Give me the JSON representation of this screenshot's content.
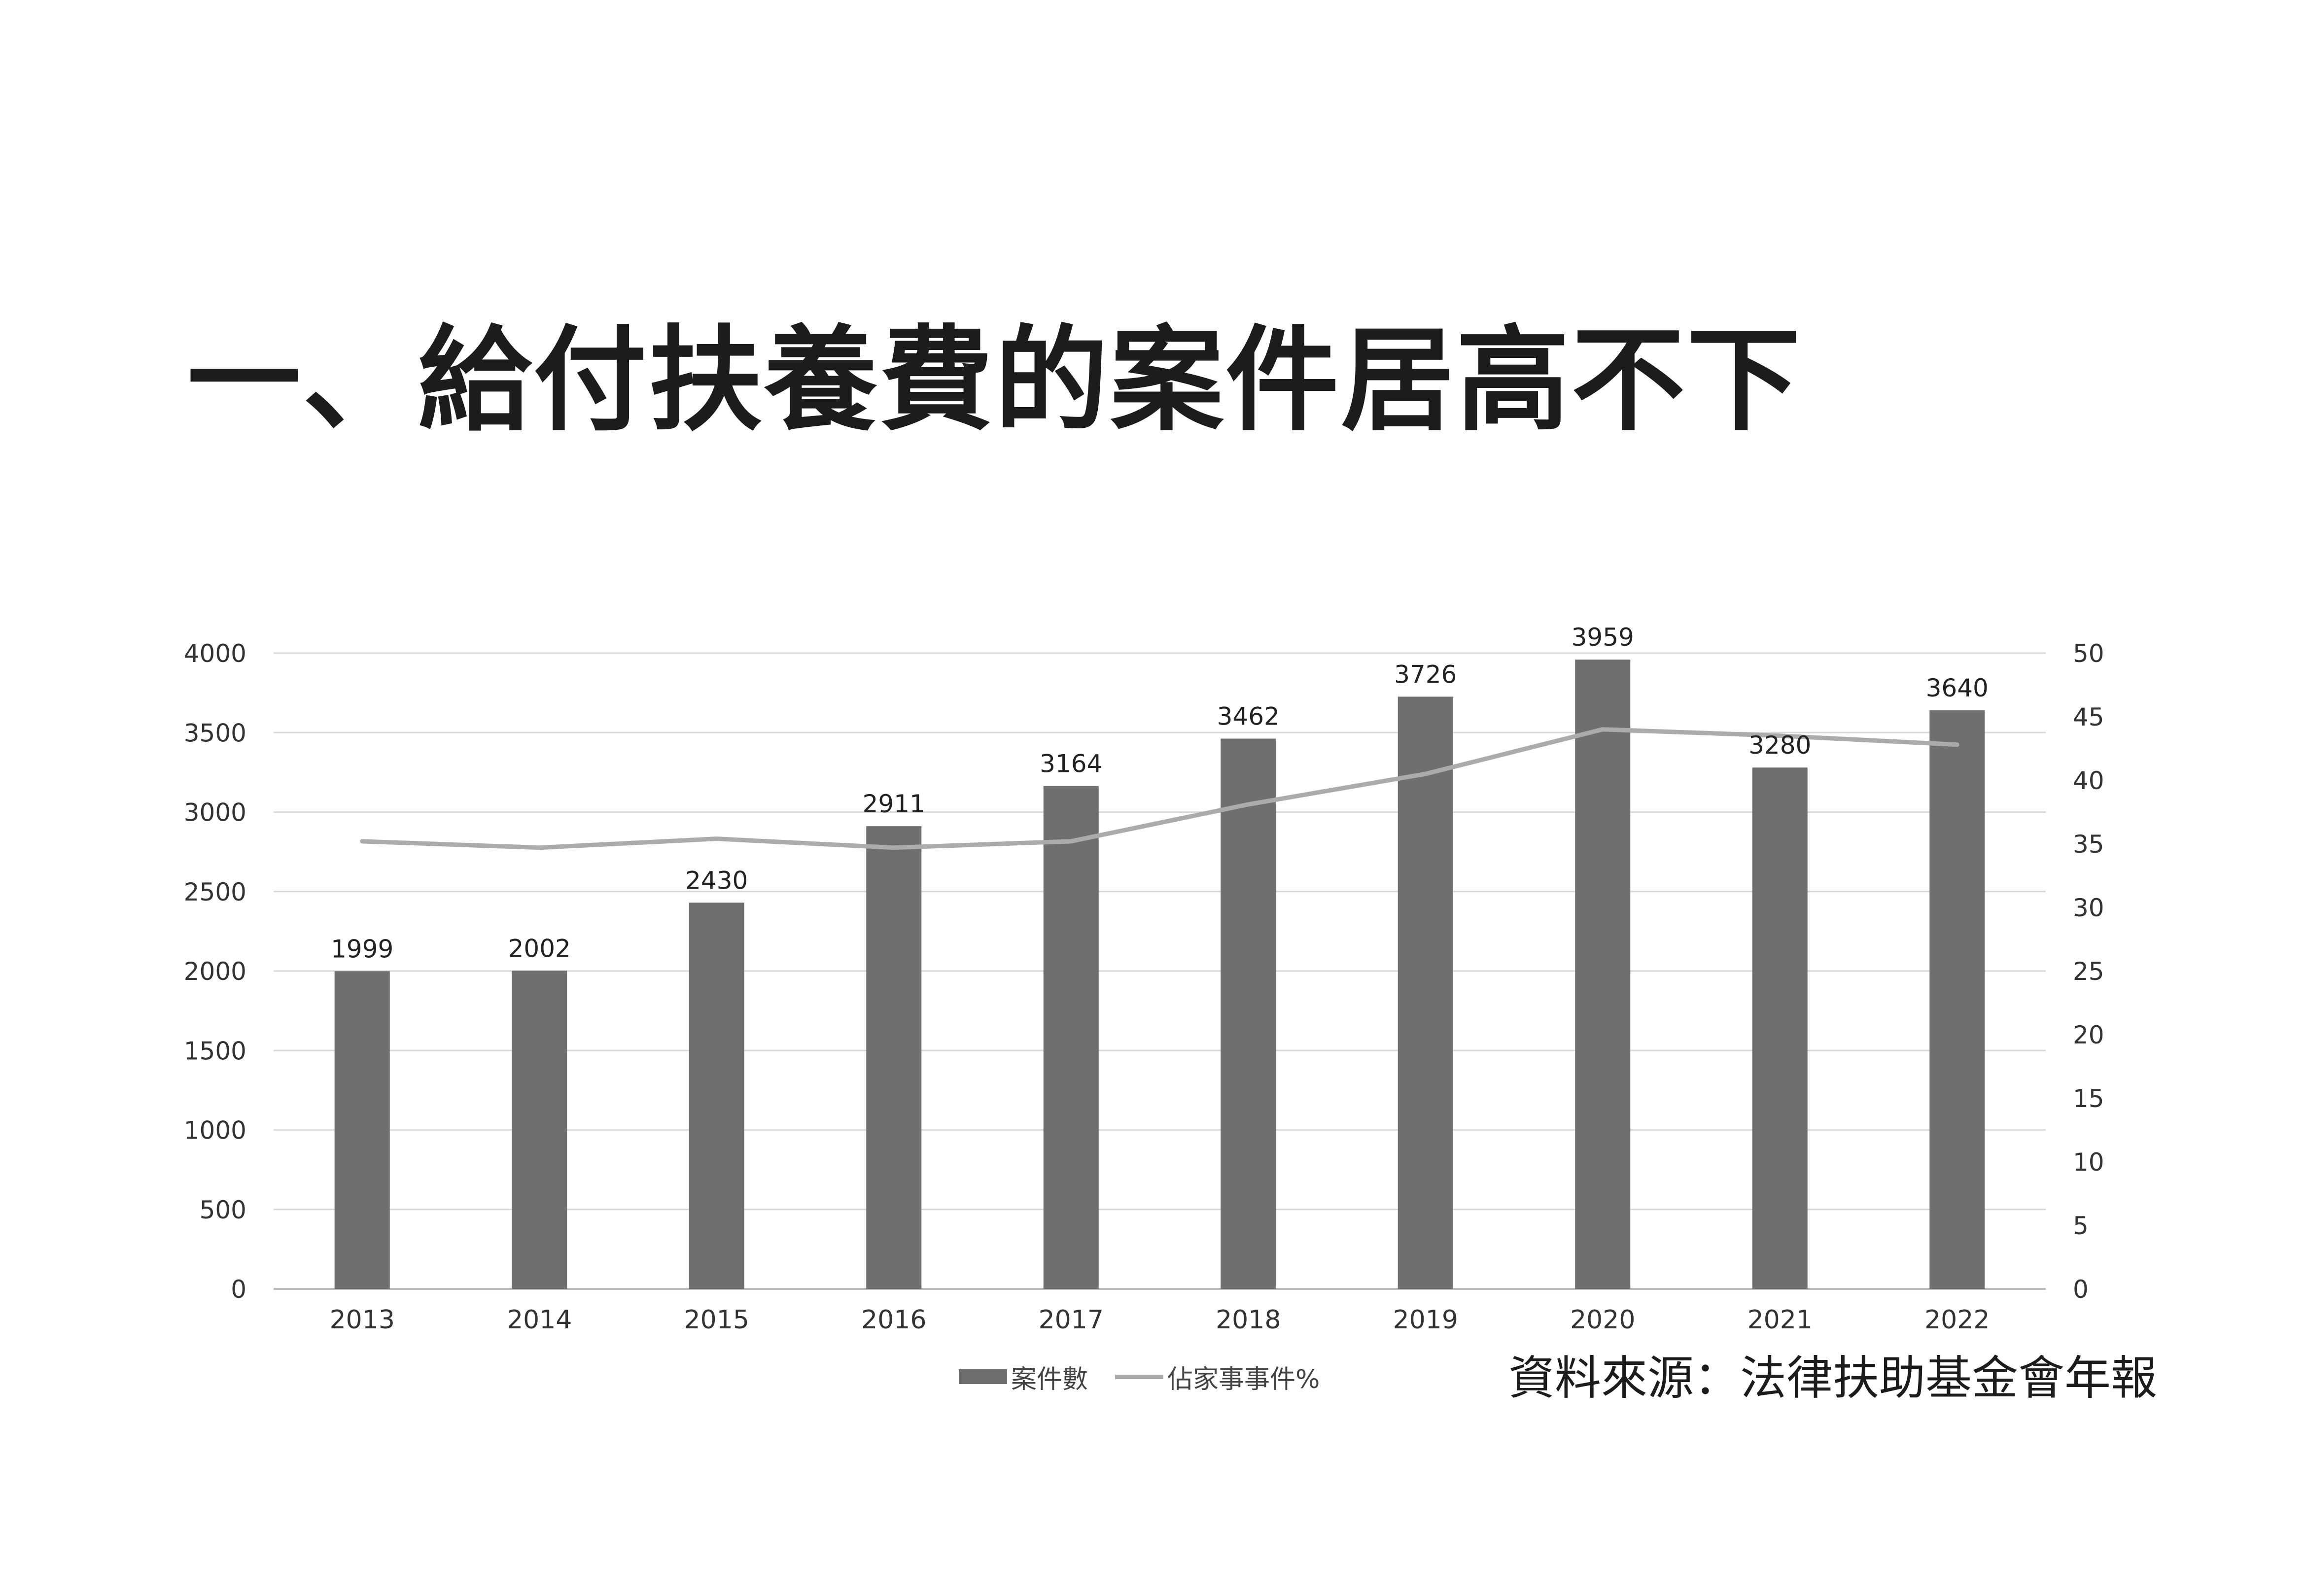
{
  "title": "一、給付扶養費的案件居高不下",
  "source": "資料來源：法律扶助基金會年報",
  "chart_data": {
    "type": "bar",
    "categories": [
      "2013",
      "2014",
      "2015",
      "2016",
      "2017",
      "2018",
      "2019",
      "2020",
      "2021",
      "2022"
    ],
    "series": [
      {
        "name": "案件數",
        "type": "bar",
        "axis": "left",
        "values": [
          1999,
          2002,
          2430,
          2911,
          3164,
          3462,
          3726,
          3959,
          3280,
          3640
        ],
        "color": "#6f6f6f"
      },
      {
        "name": "佔家事事件%",
        "type": "line",
        "axis": "right",
        "values": [
          35.2,
          34.7,
          35.4,
          34.7,
          35.2,
          38.1,
          40.5,
          44.0,
          43.5,
          42.8
        ],
        "color": "#ababab"
      }
    ],
    "y_left": {
      "ylim": [
        0,
        4000
      ],
      "ticks": [
        0,
        500,
        1000,
        1500,
        2000,
        2500,
        3000,
        3500,
        4000
      ]
    },
    "y_right": {
      "ylim": [
        0,
        50
      ],
      "ticks": [
        0,
        5,
        10,
        15,
        20,
        25,
        30,
        35,
        40,
        45,
        50
      ]
    },
    "grid": true,
    "legend": "bottom"
  }
}
